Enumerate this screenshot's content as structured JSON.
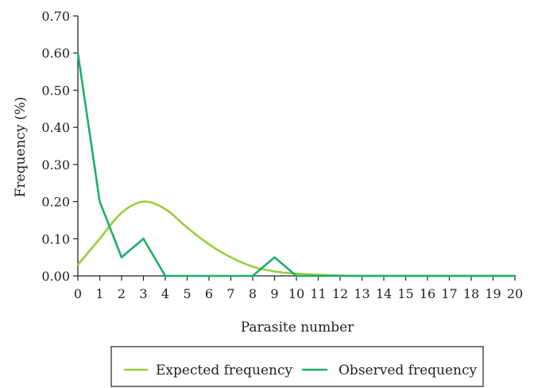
{
  "chart_data": {
    "type": "line",
    "xlabel": "Parasite number",
    "ylabel": "Frequency (%)",
    "xlim": [
      0,
      20
    ],
    "ylim": [
      0,
      0.7
    ],
    "x_ticks": [
      "0",
      "1",
      "2",
      "3",
      "4",
      "5",
      "6",
      "7",
      "8",
      "9",
      "10",
      "11",
      "12",
      "13",
      "14",
      "15",
      "16",
      "17",
      "18",
      "19",
      "20"
    ],
    "y_ticks": [
      "0.00",
      "0.10",
      "0.20",
      "0.30",
      "0.40",
      "0.50",
      "0.60",
      "0.70"
    ],
    "grid": false,
    "legend_position": "bottom",
    "series": [
      {
        "name": "Expected frequency",
        "color": "#9ACD3A",
        "smooth": true,
        "x": [
          0,
          1,
          2,
          3,
          4,
          5,
          6,
          7,
          8,
          9,
          10,
          11,
          12,
          13,
          14,
          15,
          16,
          17,
          18,
          19,
          20
        ],
        "values": [
          0.03,
          0.1,
          0.17,
          0.2,
          0.18,
          0.13,
          0.085,
          0.05,
          0.025,
          0.012,
          0.006,
          0.003,
          0.001,
          0,
          0,
          0,
          0,
          0,
          0,
          0,
          0
        ]
      },
      {
        "name": "Observed frequency",
        "color": "#1FAE6B",
        "smooth": false,
        "x": [
          0,
          1,
          2,
          3,
          4,
          5,
          6,
          7,
          8,
          9,
          10,
          11,
          12,
          13,
          14,
          15,
          16,
          17,
          18,
          19,
          20
        ],
        "values": [
          0.6,
          0.2,
          0.05,
          0.1,
          0,
          0,
          0,
          0,
          0,
          0.05,
          0,
          0,
          0,
          0,
          0,
          0,
          0,
          0,
          0,
          0,
          0
        ]
      }
    ]
  }
}
